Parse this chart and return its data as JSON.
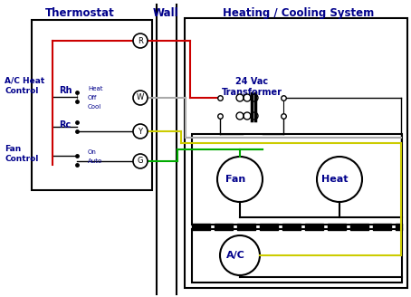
{
  "title_thermostat": "Thermostat",
  "title_wall": "Wall",
  "title_hcs": "Heating / Cooling System",
  "title_transformer": "24 Vac\nTransformer",
  "label_ac_heat": "A/C Heat\nControl",
  "label_fan_ctrl": "Fan\nControl",
  "label_rh": "Rh",
  "label_rc": "Rc",
  "label_heat": "Heat",
  "label_off": "Off",
  "label_cool": "Cool",
  "label_on": "On",
  "label_auto": "Auto",
  "label_fan_unit": "Fan",
  "label_heat_unit": "Heat",
  "label_ac_unit": "A/C",
  "color_red": "#cc0000",
  "color_green": "#00aa00",
  "color_yellow": "#cccc00",
  "color_gray": "#aaaaaa",
  "color_black": "#000000",
  "color_bg": "#ffffff",
  "color_title_blue": "#00008b",
  "color_label_blue": "#00008b"
}
